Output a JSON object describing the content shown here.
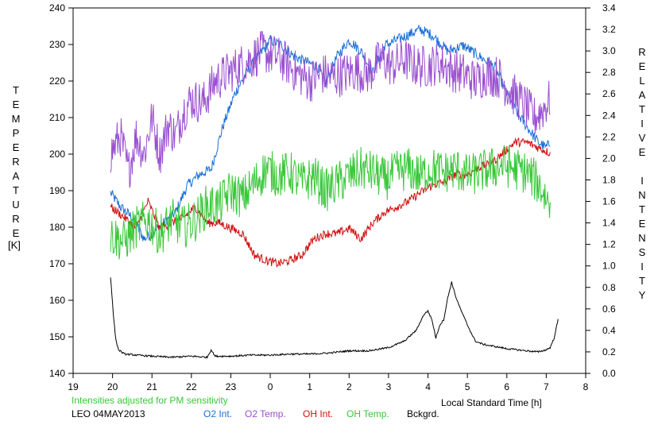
{
  "chart_data": {
    "type": "line",
    "xlabel": "Local Standard Time [h]",
    "ylabel_left": "TEMPERATURE",
    "ylabel_left_unit": "[K]",
    "ylabel_right": "RELATIVE INTENSITY",
    "note": "Intensities adjusted for PM sensitivity",
    "station": "LEO 04MAY2013",
    "x_range": [
      19,
      32
    ],
    "x_tick_values": [
      19,
      20,
      21,
      22,
      23,
      24,
      25,
      26,
      27,
      28,
      29,
      30,
      31,
      32
    ],
    "x_tick_labels": [
      "19",
      "20",
      "21",
      "22",
      "23",
      "0",
      "1",
      "2",
      "3",
      "4",
      "5",
      "6",
      "7",
      "8"
    ],
    "y_left_range": [
      140,
      240
    ],
    "y_left_ticks": [
      140,
      150,
      160,
      170,
      180,
      190,
      200,
      210,
      220,
      230,
      240
    ],
    "y_right_range": [
      0.0,
      3.4
    ],
    "y_right_ticks": [
      "0.0",
      "0.2",
      "0.4",
      "0.6",
      "0.8",
      "1.0",
      "1.2",
      "1.4",
      "1.6",
      "1.8",
      "2.0",
      "2.2",
      "2.4",
      "2.6",
      "2.8",
      "3.0",
      "3.2",
      "3.4"
    ],
    "grid": false,
    "legend_position": "bottom",
    "series": [
      {
        "name": "O2 Int.",
        "axis": "right",
        "color": "#1a6fd6",
        "noise": 0.05,
        "x": [
          19.95,
          20.2,
          20.5,
          20.8,
          21.0,
          21.3,
          21.6,
          21.9,
          22.2,
          22.5,
          22.8,
          23.1,
          23.4,
          23.7,
          24.0,
          24.3,
          24.6,
          24.9,
          25.2,
          25.4,
          25.7,
          26.0,
          26.3,
          26.6,
          26.9,
          27.2,
          27.5,
          27.8,
          28.1,
          28.5,
          28.9,
          29.3,
          29.7,
          30.0,
          30.3,
          30.6,
          30.8,
          31.0,
          31.1
        ],
        "y": [
          1.68,
          1.55,
          1.45,
          1.25,
          1.3,
          1.4,
          1.5,
          1.75,
          1.85,
          1.9,
          2.3,
          2.6,
          2.8,
          2.95,
          3.1,
          3.05,
          2.95,
          2.9,
          2.85,
          2.7,
          2.95,
          3.1,
          3.0,
          2.8,
          3.05,
          3.1,
          3.15,
          3.2,
          3.15,
          3.0,
          3.05,
          2.95,
          2.85,
          2.6,
          2.4,
          2.25,
          2.15,
          2.1,
          2.15
        ]
      },
      {
        "name": "O2 Temp.",
        "axis": "left",
        "color": "#9a4fd0",
        "noise": 6,
        "x": [
          19.95,
          20.2,
          20.4,
          20.6,
          20.8,
          21.0,
          21.2,
          21.4,
          21.6,
          21.8,
          22.0,
          22.3,
          22.6,
          22.9,
          23.2,
          23.5,
          23.8,
          24.1,
          24.4,
          24.7,
          25.0,
          25.3,
          25.6,
          25.9,
          26.2,
          26.5,
          26.8,
          27.1,
          27.4,
          27.7,
          28.0,
          28.3,
          28.6,
          28.9,
          29.2,
          29.5,
          29.8,
          30.1,
          30.4,
          30.7,
          30.9,
          31.1
        ],
        "y": [
          200,
          205,
          195,
          205,
          200,
          210,
          200,
          208,
          205,
          212,
          215,
          214,
          220,
          222,
          224,
          226,
          228,
          227,
          225,
          222,
          220,
          222,
          221,
          222,
          223,
          222,
          226,
          224,
          226,
          224,
          224,
          225,
          223,
          222,
          220,
          222,
          221,
          217,
          214,
          210,
          212,
          215
        ]
      },
      {
        "name": "OH Int.",
        "axis": "right",
        "color": "#d01010",
        "noise": 0.04,
        "x": [
          19.95,
          20.3,
          20.6,
          20.9,
          21.2,
          21.5,
          21.8,
          22.1,
          22.4,
          22.7,
          23.0,
          23.3,
          23.6,
          23.9,
          24.2,
          24.5,
          24.8,
          25.1,
          25.4,
          25.7,
          26.0,
          26.3,
          26.6,
          26.9,
          27.2,
          27.5,
          27.8,
          28.1,
          28.4,
          28.7,
          29.0,
          29.3,
          29.6,
          29.9,
          30.2,
          30.5,
          30.8,
          31.1
        ],
        "y": [
          1.55,
          1.45,
          1.35,
          1.6,
          1.35,
          1.4,
          1.45,
          1.55,
          1.4,
          1.4,
          1.35,
          1.3,
          1.1,
          1.05,
          1.02,
          1.05,
          1.1,
          1.25,
          1.3,
          1.3,
          1.35,
          1.25,
          1.4,
          1.5,
          1.55,
          1.6,
          1.68,
          1.75,
          1.78,
          1.85,
          1.85,
          1.92,
          1.95,
          2.05,
          2.15,
          2.15,
          2.1,
          2.05
        ]
      },
      {
        "name": "OH Temp.",
        "axis": "left",
        "color": "#38c838",
        "noise": 6,
        "x": [
          19.95,
          20.3,
          20.6,
          20.9,
          21.2,
          21.5,
          21.8,
          22.1,
          22.4,
          22.7,
          23.0,
          23.3,
          23.6,
          23.9,
          24.2,
          24.5,
          24.8,
          25.1,
          25.4,
          25.7,
          26.0,
          26.3,
          26.6,
          26.9,
          27.2,
          27.5,
          27.8,
          28.1,
          28.4,
          28.7,
          29.0,
          29.3,
          29.6,
          29.9,
          30.2,
          30.5,
          30.8,
          31.1
        ],
        "y": [
          178,
          176,
          180,
          182,
          178,
          182,
          180,
          182,
          186,
          186,
          190,
          188,
          192,
          196,
          194,
          195,
          192,
          194,
          190,
          192,
          194,
          196,
          195,
          193,
          195,
          196,
          194,
          196,
          195,
          196,
          194,
          195,
          196,
          197,
          196,
          195,
          192,
          186
        ]
      },
      {
        "name": "Bckgrd.",
        "axis": "right",
        "color": "#000000",
        "noise": 0.008,
        "x": [
          19.95,
          20.02,
          20.08,
          20.15,
          20.3,
          20.6,
          21.0,
          21.5,
          22.0,
          22.4,
          22.5,
          22.6,
          23.0,
          23.5,
          24.0,
          24.5,
          25.0,
          25.5,
          26.0,
          26.5,
          27.0,
          27.4,
          27.7,
          27.9,
          28.0,
          28.1,
          28.2,
          28.3,
          28.4,
          28.5,
          28.6,
          28.7,
          28.8,
          29.0,
          29.2,
          29.4,
          29.7,
          30.0,
          30.5,
          30.8,
          31.0,
          31.1,
          31.2,
          31.3
        ],
        "y": [
          0.9,
          0.55,
          0.32,
          0.22,
          0.18,
          0.17,
          0.16,
          0.15,
          0.16,
          0.15,
          0.22,
          0.16,
          0.16,
          0.17,
          0.17,
          0.18,
          0.18,
          0.19,
          0.21,
          0.21,
          0.24,
          0.3,
          0.4,
          0.55,
          0.58,
          0.5,
          0.33,
          0.45,
          0.5,
          0.7,
          0.85,
          0.72,
          0.62,
          0.45,
          0.3,
          0.27,
          0.25,
          0.23,
          0.21,
          0.2,
          0.22,
          0.24,
          0.33,
          0.5
        ]
      }
    ]
  }
}
